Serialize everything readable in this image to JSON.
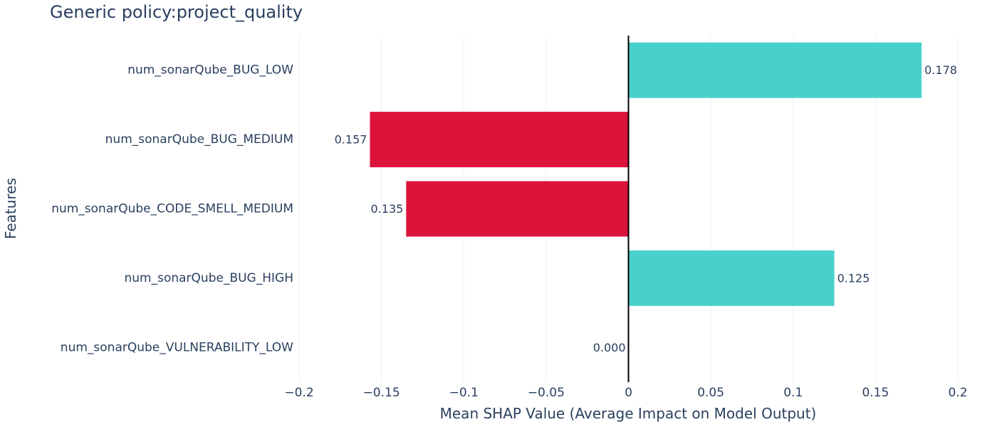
{
  "chart_data": {
    "type": "bar",
    "orientation": "horizontal",
    "title": "Generic policy:project_quality",
    "xlabel": "Mean SHAP Value (Average Impact on Model Output)",
    "ylabel": "Features",
    "xlim": [
      -0.2,
      0.2
    ],
    "xticks": [
      -0.2,
      -0.15,
      -0.1,
      -0.05,
      0,
      0.05,
      0.1,
      0.15,
      0.2
    ],
    "xtick_labels": [
      "−0.2",
      "−0.15",
      "−0.1",
      "−0.05",
      "0",
      "0.05",
      "0.1",
      "0.15",
      "0.2"
    ],
    "grid": true,
    "categories": [
      "num_sonarQube_BUG_LOW",
      "num_sonarQube_BUG_MEDIUM",
      "num_sonarQube_CODE_SMELL_MEDIUM",
      "num_sonarQube_BUG_HIGH",
      "num_sonarQube_VULNERABILITY_LOW"
    ],
    "values": [
      0.178,
      -0.157,
      -0.135,
      0.125,
      0.0
    ],
    "data_labels": [
      "0.178",
      "0.157",
      "0.135",
      "0.125",
      "0.000"
    ],
    "colors": {
      "positive": "#48d1cc",
      "negative": "#dc143c",
      "zero_line": "#000000",
      "grid": "#ebf0f8",
      "text": "#2a3f5f"
    }
  }
}
